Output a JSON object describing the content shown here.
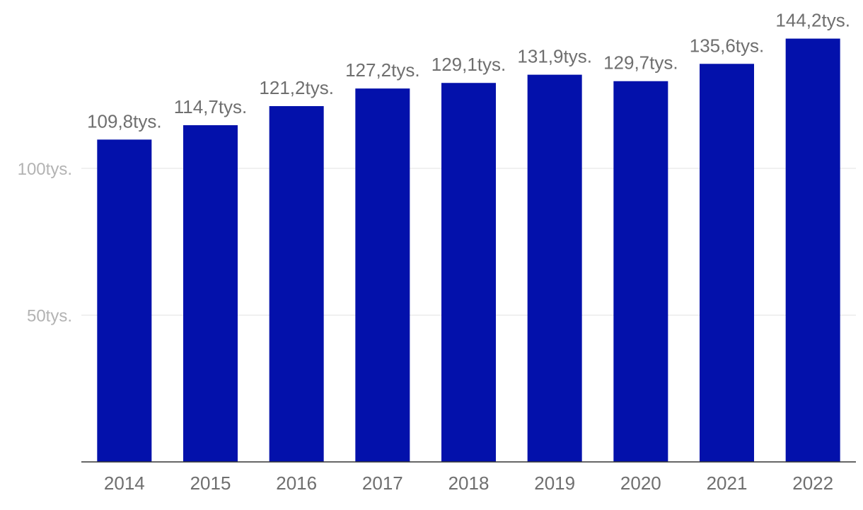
{
  "chart_data": {
    "type": "bar",
    "title": "",
    "xlabel": "",
    "ylabel": "",
    "categories": [
      "2014",
      "2015",
      "2016",
      "2017",
      "2018",
      "2019",
      "2020",
      "2021",
      "2022"
    ],
    "values": [
      109.8,
      114.7,
      121.2,
      127.2,
      129.1,
      131.9,
      129.7,
      135.6,
      144.2
    ],
    "data_labels": [
      "109,8tys.",
      "114,7tys.",
      "121,2tys.",
      "127,2tys.",
      "129,1tys.",
      "131,9tys.",
      "129,7tys.",
      "135,6tys.",
      "144,2tys."
    ],
    "y_ticks": [
      {
        "value": 50,
        "label": "50tys."
      },
      {
        "value": 100,
        "label": "100tys."
      }
    ],
    "ylim": [
      0,
      150
    ],
    "grid": true,
    "legend": "none",
    "colors": {
      "bar": "#0311ab",
      "grid": "#e3e3e3",
      "axis": "#333333",
      "tick_text": "#b3b3b3",
      "label_text": "#6f6f6f"
    }
  }
}
